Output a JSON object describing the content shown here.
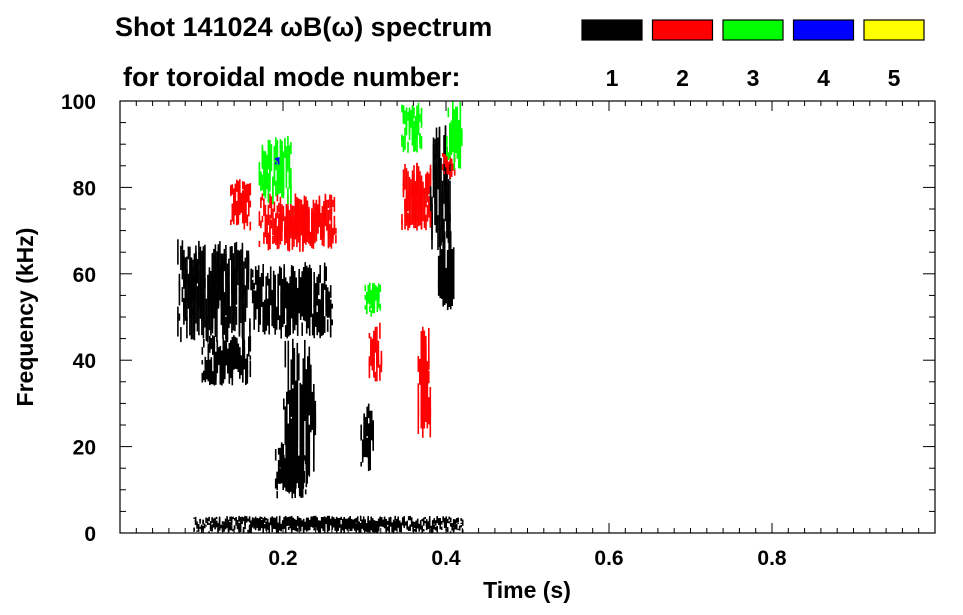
{
  "chart_data": {
    "type": "heatmap",
    "title_line1": "Shot 141024 ωB(ω) spectrum",
    "title_line2": "for toroidal mode number:",
    "xlabel": "Time (s)",
    "ylabel": "Frequency (kHz)",
    "xlim": [
      0.0,
      1.0
    ],
    "ylim": [
      0,
      100
    ],
    "x_ticks": [
      0.2,
      0.4,
      0.6,
      0.8
    ],
    "x_tick_labels": [
      "0.2",
      "0.4",
      "0.6",
      "0.8"
    ],
    "y_ticks": [
      0,
      20,
      40,
      60,
      80,
      100
    ],
    "y_tick_labels": [
      "0",
      "20",
      "40",
      "60",
      "80",
      "100"
    ],
    "legend_placement": "top-right",
    "modes": [
      {
        "n": 1,
        "label": "1",
        "color": "#000000"
      },
      {
        "n": 2,
        "label": "2",
        "color": "#ff0000"
      },
      {
        "n": 3,
        "label": "3",
        "color": "#00ff00"
      },
      {
        "n": 4,
        "label": "4",
        "color": "#0000ff"
      },
      {
        "n": 5,
        "label": "5",
        "color": "#ffff00"
      }
    ],
    "activity_regions": [
      {
        "mode": 1,
        "t": [
          0.07,
          0.16
        ],
        "f": [
          44,
          68
        ]
      },
      {
        "mode": 1,
        "t": [
          0.1,
          0.16
        ],
        "f": [
          34,
          46
        ]
      },
      {
        "mode": 1,
        "t": [
          0.16,
          0.26
        ],
        "f": [
          45,
          63
        ]
      },
      {
        "mode": 1,
        "t": [
          0.2,
          0.24
        ],
        "f": [
          10,
          45
        ]
      },
      {
        "mode": 1,
        "t": [
          0.19,
          0.23
        ],
        "f": [
          8,
          21
        ]
      },
      {
        "mode": 1,
        "t": [
          0.295,
          0.31
        ],
        "f": [
          14,
          30
        ]
      },
      {
        "mode": 1,
        "t": [
          0.38,
          0.405
        ],
        "f": [
          65,
          95
        ]
      },
      {
        "mode": 1,
        "t": [
          0.39,
          0.41
        ],
        "f": [
          50,
          70
        ]
      },
      {
        "mode": 1,
        "t": [
          0.09,
          0.42
        ],
        "f": [
          0,
          4
        ]
      },
      {
        "mode": 2,
        "t": [
          0.135,
          0.16
        ],
        "f": [
          70,
          82
        ]
      },
      {
        "mode": 2,
        "t": [
          0.17,
          0.265
        ],
        "f": [
          65,
          79
        ]
      },
      {
        "mode": 2,
        "t": [
          0.305,
          0.32
        ],
        "f": [
          35,
          49
        ]
      },
      {
        "mode": 2,
        "t": [
          0.345,
          0.38
        ],
        "f": [
          70,
          86
        ]
      },
      {
        "mode": 2,
        "t": [
          0.365,
          0.38
        ],
        "f": [
          22,
          48
        ]
      },
      {
        "mode": 2,
        "t": [
          0.395,
          0.41
        ],
        "f": [
          82,
          88
        ]
      },
      {
        "mode": 3,
        "t": [
          0.17,
          0.21
        ],
        "f": [
          76,
          92
        ]
      },
      {
        "mode": 3,
        "t": [
          0.345,
          0.37
        ],
        "f": [
          88,
          100
        ]
      },
      {
        "mode": 3,
        "t": [
          0.4,
          0.42
        ],
        "f": [
          84,
          100
        ]
      },
      {
        "mode": 3,
        "t": [
          0.3,
          0.32
        ],
        "f": [
          50,
          58
        ]
      },
      {
        "mode": 4,
        "t": [
          0.19,
          0.195
        ],
        "f": [
          85,
          87
        ]
      }
    ]
  }
}
